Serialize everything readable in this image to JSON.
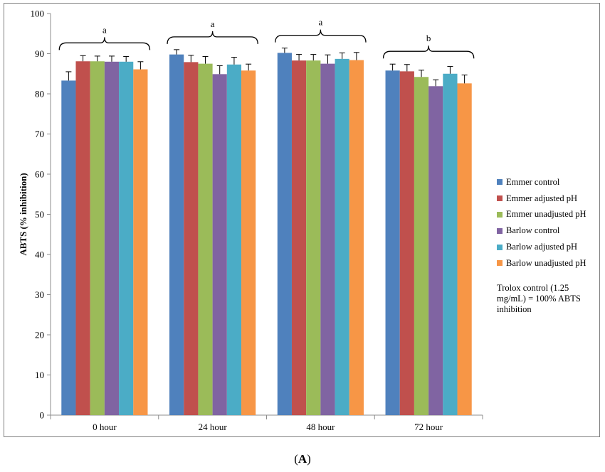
{
  "chart_data": {
    "type": "bar",
    "categories": [
      "0 hour",
      "24 hour",
      "48 hour",
      "72 hour"
    ],
    "ylabel": "ABTS (% inhibition)",
    "ylim": [
      0,
      100
    ],
    "yticks": [
      0,
      10,
      20,
      30,
      40,
      50,
      60,
      70,
      80,
      90,
      100
    ],
    "legend_position": "right",
    "series": [
      {
        "name": "Emmer control",
        "color": "#4f81bd",
        "values": [
          83.3,
          89.8,
          90.2,
          85.8
        ],
        "errors": [
          2.2,
          1.2,
          1.2,
          1.6
        ]
      },
      {
        "name": "Emmer adjusted pH",
        "color": "#c0504d",
        "values": [
          88.1,
          87.9,
          88.3,
          85.6
        ],
        "errors": [
          1.4,
          1.7,
          1.5,
          1.7
        ]
      },
      {
        "name": "Emmer unadjusted pH",
        "color": "#9bbb59",
        "values": [
          88.1,
          87.5,
          88.3,
          84.2
        ],
        "errors": [
          1.3,
          1.8,
          1.5,
          1.7
        ]
      },
      {
        "name": "Barlow control",
        "color": "#8064a2",
        "values": [
          88.0,
          84.9,
          87.5,
          81.9
        ],
        "errors": [
          1.4,
          2.1,
          2.2,
          1.6
        ]
      },
      {
        "name": "Barlow adjusted pH",
        "color": "#4bacc6",
        "values": [
          88.0,
          87.3,
          88.7,
          85.0
        ],
        "errors": [
          1.3,
          1.8,
          1.5,
          1.8
        ]
      },
      {
        "name": "Barlow unadjusted pH",
        "color": "#f79646",
        "values": [
          86.1,
          85.8,
          88.4,
          82.6
        ],
        "errors": [
          1.9,
          1.6,
          1.9,
          2.1
        ]
      }
    ],
    "group_annotations": [
      "a",
      "a",
      "a",
      "b"
    ],
    "note": "Trolox control (1.25 mg/mL) = 100% ABTS inhibition"
  },
  "figure_label": "(A)",
  "figure_label_parts": {
    "open": "(",
    "letter": "A",
    "close": ")"
  }
}
